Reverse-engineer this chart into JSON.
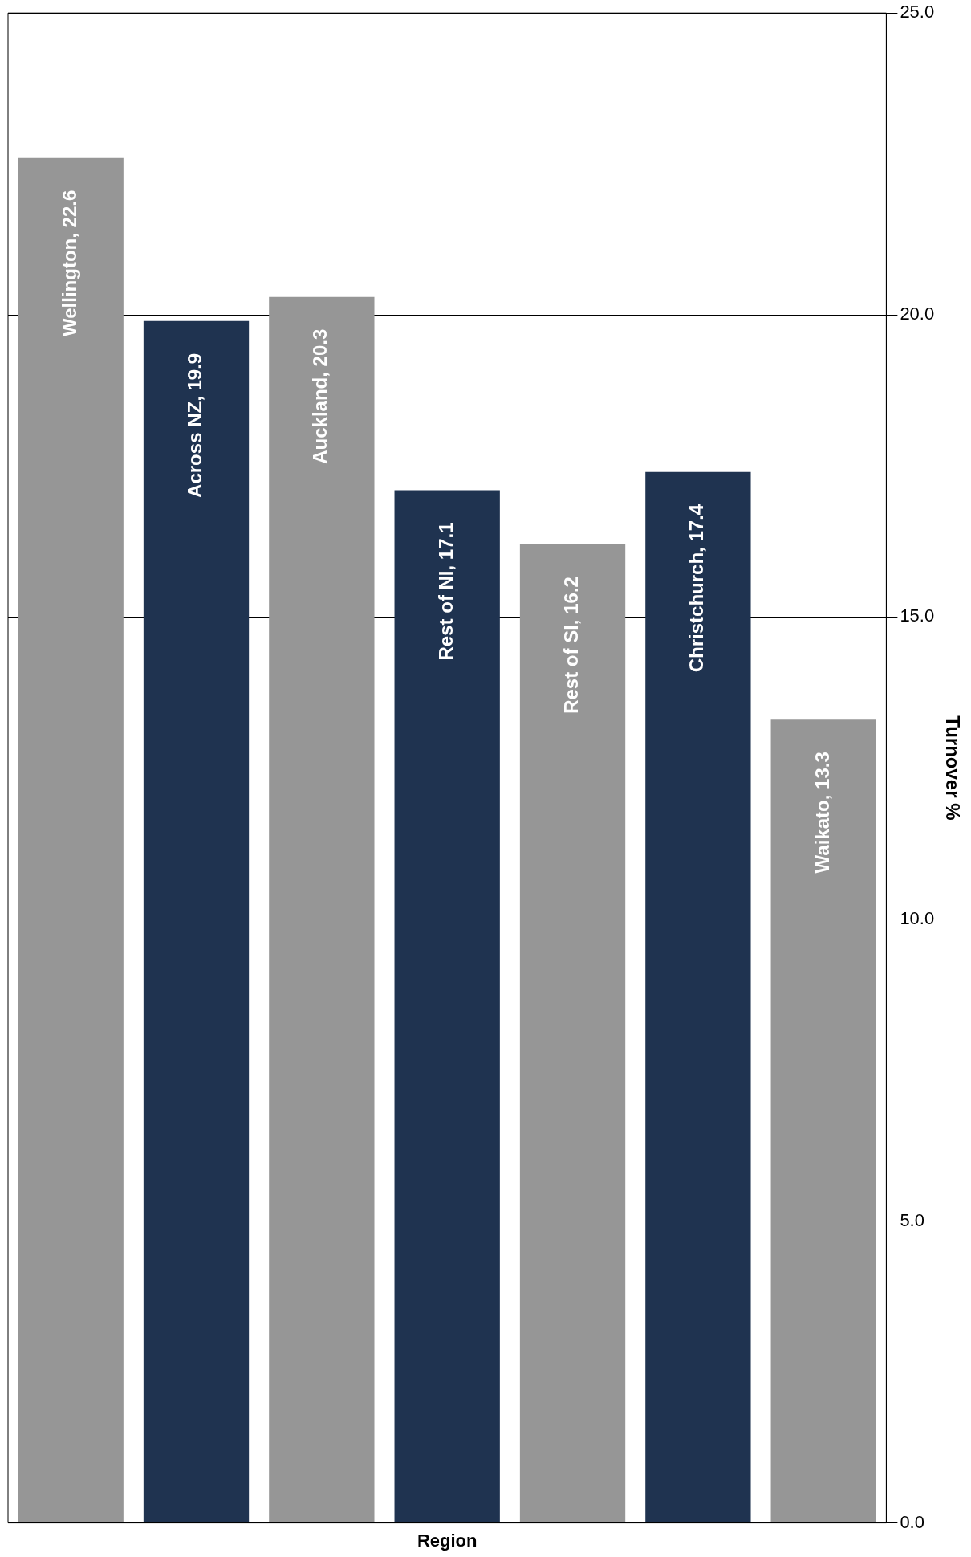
{
  "chart_data": {
    "type": "bar",
    "xlabel": "Region",
    "ylabel": "Turnover %",
    "categories": [
      null,
      null,
      null,
      null,
      null,
      null,
      null
    ],
    "values": [
      22.6,
      19.9,
      20.3,
      17.1,
      16.2,
      17.4,
      13.3
    ],
    "colors": [
      "#969696",
      "#1f3350",
      "#969696",
      "#1f3350",
      "#969696",
      "#1f3350",
      "#969696"
    ],
    "value_labels": [
      "Wellington, 22.6",
      "Across NZ, 19.9",
      "Auckland, 20.3",
      "Rest of NI, 17.1",
      "Rest of SI, 16.2",
      "Christchurch, 17.4",
      "Waikato, 13.3"
    ],
    "ylim": [
      0,
      25
    ],
    "yticks": [
      {
        "value": 0,
        "label": "0.0"
      },
      {
        "value": 5,
        "label": "5.0"
      },
      {
        "value": 10,
        "label": "10.0"
      },
      {
        "value": 15,
        "label": "15.0"
      },
      {
        "value": 20,
        "label": "20.0"
      },
      {
        "value": 25,
        "label": "25.0"
      }
    ],
    "grid": "y",
    "tick_labels": "y"
  }
}
